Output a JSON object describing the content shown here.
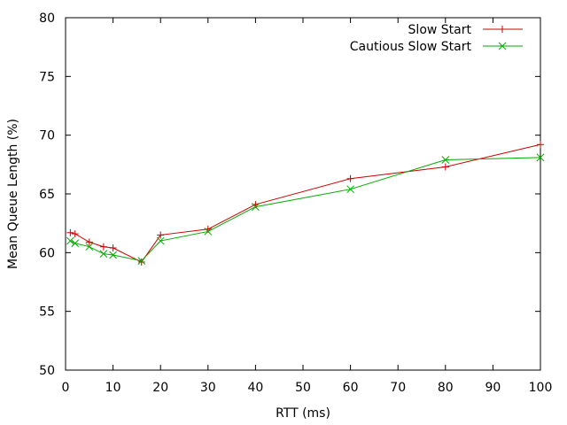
{
  "chart_data": {
    "type": "line",
    "title": "",
    "xlabel": "RTT (ms)",
    "ylabel": "Mean Queue Length (%)",
    "xlim": [
      0,
      100
    ],
    "ylim": [
      50,
      80
    ],
    "xticks": [
      0,
      10,
      20,
      30,
      40,
      50,
      60,
      70,
      80,
      90,
      100
    ],
    "yticks": [
      50,
      55,
      60,
      65,
      70,
      75,
      80
    ],
    "grid": false,
    "legend_position": "top-right",
    "series": [
      {
        "name": "Slow Start",
        "color": "#cc0000",
        "marker": "plus",
        "x": [
          1,
          2,
          5,
          8,
          10,
          16,
          20,
          30,
          40,
          60,
          80,
          100
        ],
        "y": [
          61.7,
          61.6,
          60.9,
          60.5,
          60.4,
          59.2,
          61.5,
          62.0,
          64.1,
          66.3,
          67.3,
          69.2
        ]
      },
      {
        "name": "Cautious Slow Start",
        "color": "#00aa00",
        "marker": "cross",
        "x": [
          1,
          2,
          5,
          8,
          10,
          16,
          20,
          30,
          40,
          60,
          80,
          100
        ],
        "y": [
          61.0,
          60.8,
          60.5,
          59.9,
          59.8,
          59.3,
          61.0,
          61.8,
          63.9,
          65.4,
          67.9,
          68.1
        ]
      }
    ]
  }
}
